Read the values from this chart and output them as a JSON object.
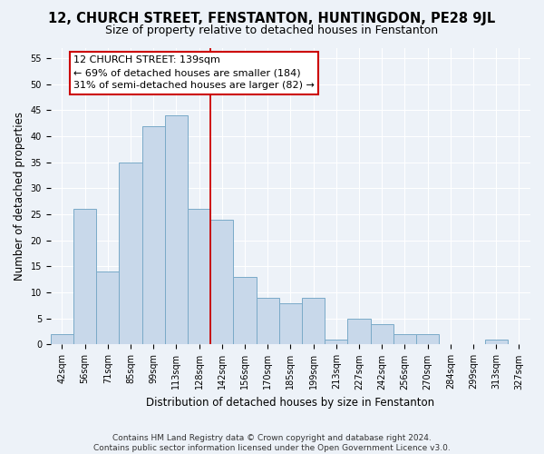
{
  "title": "12, CHURCH STREET, FENSTANTON, HUNTINGDON, PE28 9JL",
  "subtitle": "Size of property relative to detached houses in Fenstanton",
  "xlabel": "Distribution of detached houses by size in Fenstanton",
  "ylabel": "Number of detached properties",
  "bar_labels": [
    "42sqm",
    "56sqm",
    "71sqm",
    "85sqm",
    "99sqm",
    "113sqm",
    "128sqm",
    "142sqm",
    "156sqm",
    "170sqm",
    "185sqm",
    "199sqm",
    "213sqm",
    "227sqm",
    "242sqm",
    "256sqm",
    "270sqm",
    "284sqm",
    "299sqm",
    "313sqm",
    "327sqm"
  ],
  "bar_values": [
    2,
    26,
    14,
    35,
    42,
    44,
    26,
    24,
    13,
    9,
    8,
    9,
    1,
    5,
    4,
    2,
    2,
    0,
    0,
    1,
    0
  ],
  "bar_color": "#c8d8ea",
  "bar_edge_color": "#7aaac8",
  "vline_color": "#cc0000",
  "annotation_line1": "12 CHURCH STREET: 139sqm",
  "annotation_line2": "← 69% of detached houses are smaller (184)",
  "annotation_line3": "31% of semi-detached houses are larger (82) →",
  "ylim": [
    0,
    57
  ],
  "yticks": [
    0,
    5,
    10,
    15,
    20,
    25,
    30,
    35,
    40,
    45,
    50,
    55
  ],
  "footer": "Contains HM Land Registry data © Crown copyright and database right 2024.\nContains public sector information licensed under the Open Government Licence v3.0.",
  "bg_color": "#edf2f8",
  "grid_color": "#ffffff",
  "title_fontsize": 10.5,
  "subtitle_fontsize": 9,
  "axis_label_fontsize": 8.5,
  "tick_fontsize": 7,
  "annotation_fontsize": 8,
  "footer_fontsize": 6.5
}
